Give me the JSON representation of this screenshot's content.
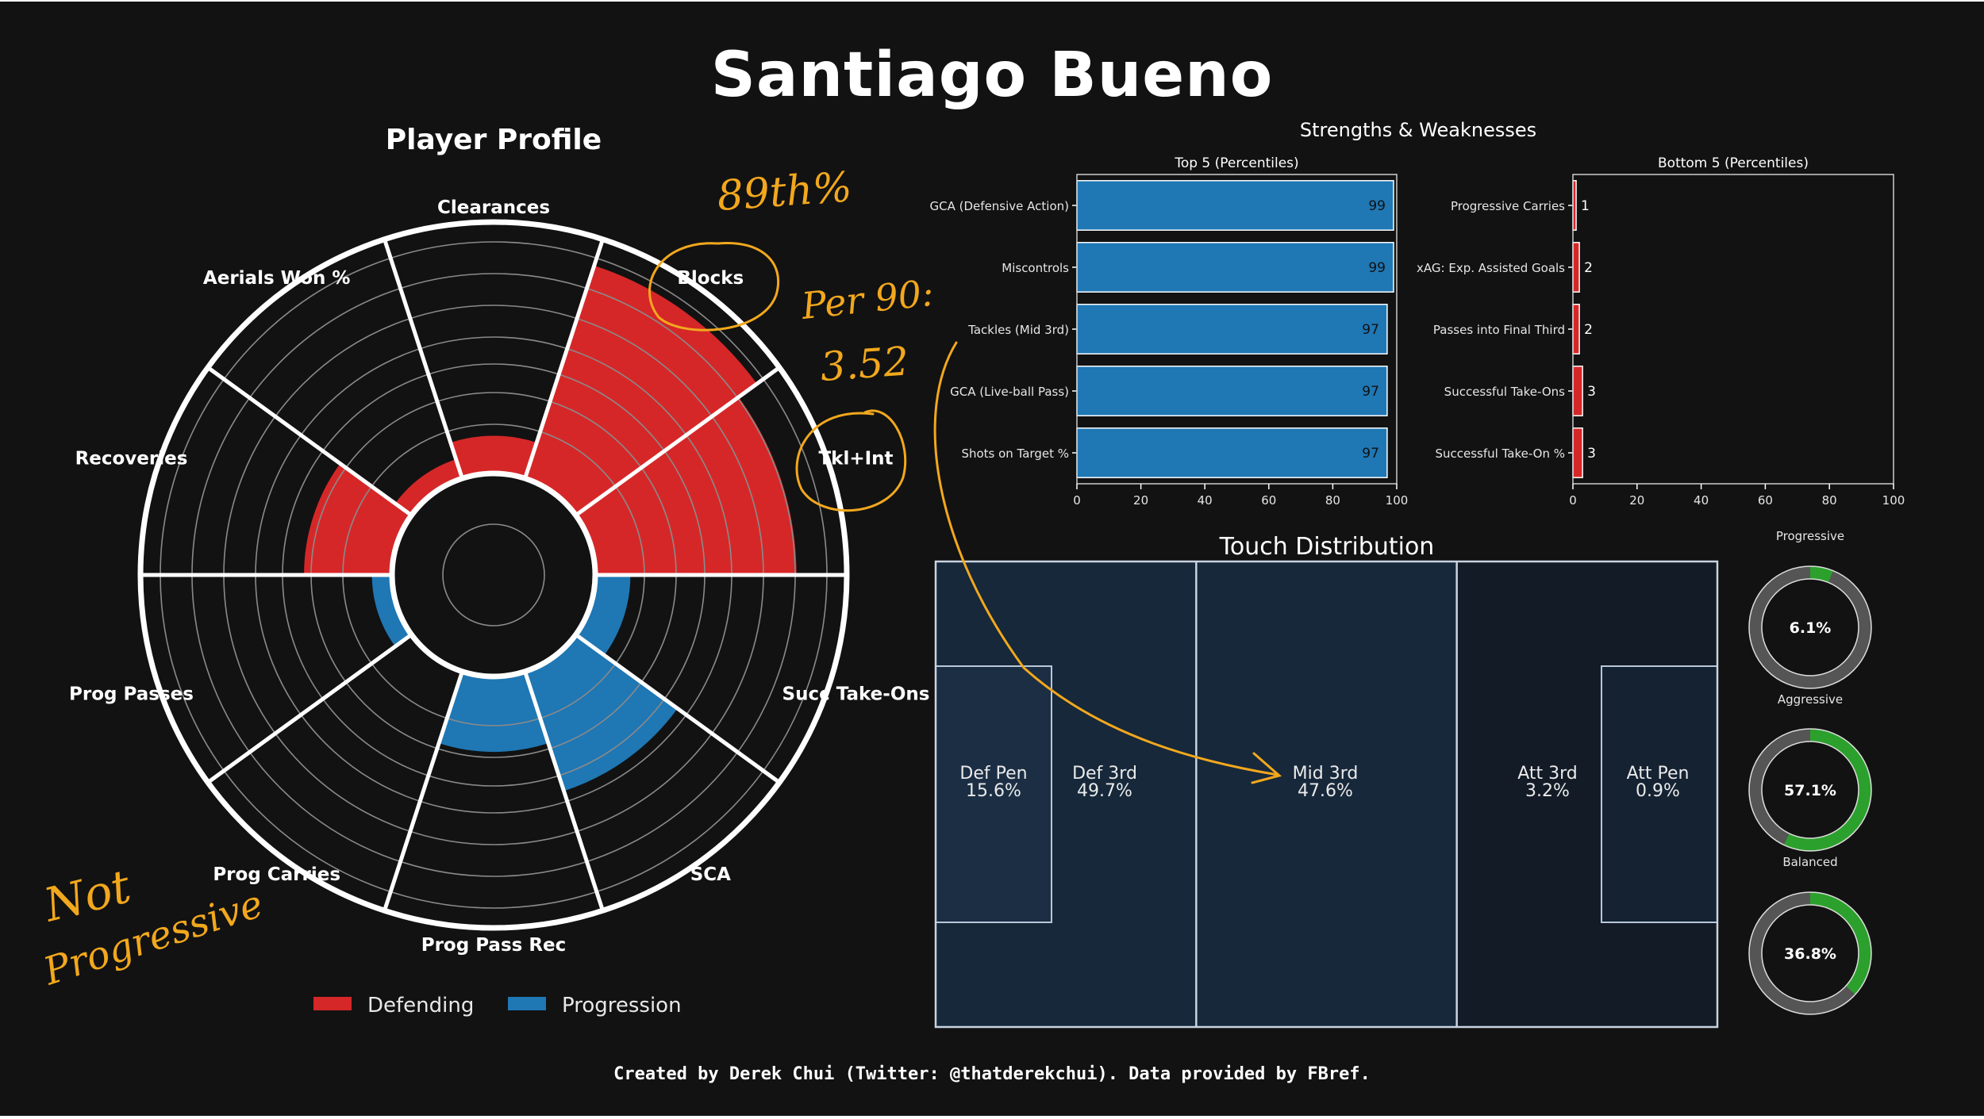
{
  "page": {
    "title": "Santiago Bueno",
    "credit": "Created by Derek Chui (Twitter: @thatderekchui). Data provided by FBref."
  },
  "colors": {
    "background": "#121212",
    "defending": "#d62728",
    "progression": "#1f77b4",
    "donut_fill": "#2ca02c",
    "donut_track": "#555555",
    "pitch_dark": "#131b26",
    "pitch_mid": "#162638",
    "annotation": "#f2a81d"
  },
  "chart_data": [
    {
      "type": "radar",
      "title": "Player Profile",
      "categories": [
        "Clearances",
        "Blocks",
        "Tkl+Int",
        "Succ Take-Ons",
        "SCA",
        "Prog Pass Rec",
        "Prog Carries",
        "Prog Passes",
        "Recoveries",
        "Aerials Won %"
      ],
      "groups": [
        "Defending",
        "Defending",
        "Defending",
        "Progression",
        "Progression",
        "Progression",
        "Progression",
        "Progression",
        "Defending",
        "Defending"
      ],
      "values": [
        15,
        89,
        80,
        14,
        50,
        30,
        1,
        8,
        35,
        8
      ],
      "rlim": [
        0,
        100
      ],
      "legend": [
        {
          "name": "Defending",
          "color": "#d62728"
        },
        {
          "name": "Progression",
          "color": "#1f77b4"
        }
      ]
    },
    {
      "type": "bar",
      "orientation": "horizontal",
      "suptitle": "Strengths & Weaknesses",
      "title": "Top 5 (Percentiles)",
      "categories": [
        "GCA (Defensive Action)",
        "Miscontrols",
        "Tackles (Mid 3rd)",
        "GCA (Live-ball Pass)",
        "Shots on Target %"
      ],
      "values": [
        99,
        99,
        97,
        97,
        97
      ],
      "xlim": [
        0,
        100
      ],
      "xticks": [
        0,
        20,
        40,
        60,
        80,
        100
      ],
      "color": "#1f77b4"
    },
    {
      "type": "bar",
      "orientation": "horizontal",
      "title": "Bottom 5 (Percentiles)",
      "categories": [
        "Progressive Carries",
        "xAG: Exp. Assisted Goals",
        "Passes into Final Third",
        "Successful Take-Ons",
        "Successful Take-On %"
      ],
      "values": [
        1,
        2,
        2,
        3,
        3
      ],
      "xlim": [
        0,
        100
      ],
      "xticks": [
        0,
        20,
        40,
        60,
        80,
        100
      ],
      "color": "#d62728"
    },
    {
      "type": "heatmap",
      "title": "Touch Distribution",
      "zones": [
        {
          "label": "Def Pen",
          "value": "15.6%"
        },
        {
          "label": "Def 3rd",
          "value": "49.7%"
        },
        {
          "label": "Mid 3rd",
          "value": "47.6%"
        },
        {
          "label": "Att 3rd",
          "value": "3.2%"
        },
        {
          "label": "Att Pen",
          "value": "0.9%"
        }
      ]
    },
    {
      "type": "pie",
      "subtype": "donut",
      "items": [
        {
          "label": "Progressive",
          "value": 6.1,
          "text": "6.1%"
        },
        {
          "label": "Aggressive",
          "value": 57.1,
          "text": "57.1%"
        },
        {
          "label": "Balanced",
          "value": 36.8,
          "text": "36.8%"
        }
      ]
    }
  ],
  "annotations": {
    "blocks_pct": "89th%",
    "per90_label": "Per 90:",
    "per90_value": "3.52",
    "not_label": "Not",
    "progressive_label": "Progressive"
  }
}
